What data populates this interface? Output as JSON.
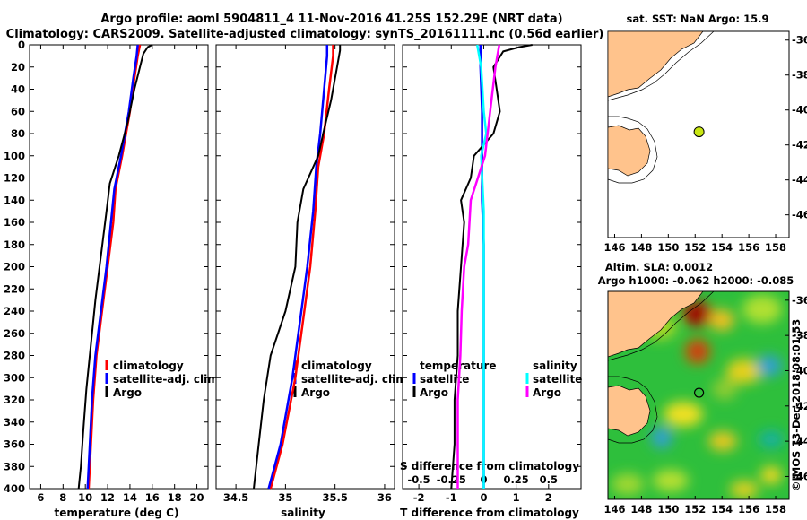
{
  "title_line1": "Argo profile: aoml 5904811_4 11-Nov-2016 41.25S 152.29E (NRT data)",
  "title_line2": "Climatology: CARS2009. Satellite-adjusted climatology: synTS_20161111.nc (0.56d earlier)",
  "watermark": "©IMOS 13-Dec-2018 08:01:53",
  "colors": {
    "climatology": "#ff0000",
    "satellite_adj": "#0000ff",
    "argo": "#000000",
    "satellite_s": "#00ffff",
    "argo_s": "#ff00ff",
    "land": "#ffc38c"
  },
  "depth_axis": {
    "ylim": [
      0,
      400
    ],
    "ticks": [
      0,
      20,
      40,
      60,
      80,
      100,
      120,
      140,
      160,
      180,
      200,
      220,
      240,
      260,
      280,
      300,
      320,
      340,
      360,
      380,
      400
    ]
  },
  "chart_data": [
    {
      "type": "line",
      "id": "temperature",
      "xlabel": "temperature (deg C)",
      "ylabel": "depth",
      "xlim": [
        5,
        21
      ],
      "ylim": [
        0,
        400
      ],
      "xticks": [
        6,
        8,
        10,
        12,
        14,
        16,
        18,
        20
      ],
      "legend": [
        "climatology",
        "satellite-adj. clim.",
        "Argo"
      ],
      "series": [
        {
          "name": "climatology",
          "depth": [
            0,
            10,
            30,
            60,
            100,
            130,
            160,
            200,
            240,
            280,
            320,
            360,
            400
          ],
          "values": [
            14.9,
            14.7,
            14.4,
            14.0,
            13.3,
            12.7,
            12.5,
            12.0,
            11.5,
            11.0,
            10.7,
            10.5,
            10.3
          ]
        },
        {
          "name": "satellite-adj. clim.",
          "depth": [
            0,
            10,
            30,
            60,
            100,
            130,
            160,
            200,
            240,
            280,
            320,
            360,
            400
          ],
          "values": [
            14.7,
            14.6,
            14.3,
            13.9,
            13.2,
            12.6,
            12.3,
            11.9,
            11.4,
            10.9,
            10.6,
            10.4,
            10.2
          ]
        },
        {
          "name": "Argo",
          "depth": [
            0,
            2,
            8,
            20,
            40,
            70,
            100,
            125,
            150,
            190,
            230,
            270,
            310,
            350,
            380,
            400
          ],
          "values": [
            16.0,
            15.6,
            15.2,
            14.9,
            14.4,
            13.8,
            13.0,
            12.2,
            11.9,
            11.4,
            10.9,
            10.5,
            10.1,
            9.8,
            9.6,
            9.4
          ]
        }
      ]
    },
    {
      "type": "line",
      "id": "salinity",
      "xlabel": "salinity",
      "ylabel": "depth",
      "xlim": [
        34.3,
        36.1
      ],
      "ylim": [
        0,
        400
      ],
      "xticks": [
        34.5,
        35,
        35.5,
        36
      ],
      "legend": [
        "climatology",
        "satellite-adj. clim.",
        "Argo"
      ],
      "series": [
        {
          "name": "climatology",
          "depth": [
            0,
            10,
            40,
            80,
            110,
            150,
            200,
            240,
            300,
            360,
            400
          ],
          "values": [
            35.48,
            35.48,
            35.44,
            35.39,
            35.33,
            35.3,
            35.25,
            35.19,
            35.1,
            34.97,
            34.85
          ]
        },
        {
          "name": "satellite-adj. clim.",
          "depth": [
            0,
            10,
            40,
            80,
            110,
            150,
            200,
            240,
            300,
            360,
            400
          ],
          "values": [
            35.42,
            35.42,
            35.39,
            35.35,
            35.31,
            35.28,
            35.22,
            35.16,
            35.07,
            34.95,
            34.83
          ]
        },
        {
          "name": "Argo",
          "depth": [
            0,
            5,
            20,
            50,
            80,
            100,
            130,
            160,
            200,
            240,
            280,
            320,
            360,
            400
          ],
          "values": [
            35.55,
            35.55,
            35.52,
            35.46,
            35.38,
            35.33,
            35.18,
            35.12,
            35.1,
            35.0,
            34.85,
            34.78,
            34.73,
            34.68
          ]
        }
      ]
    },
    {
      "type": "line",
      "id": "difference",
      "xlabel": "T difference from climatology",
      "x2label": "S difference from climatology",
      "ylabel": "depth",
      "xlim": [
        -2.5,
        3
      ],
      "ylim": [
        0,
        400
      ],
      "xticks": [
        -2,
        -1,
        0,
        1,
        2
      ],
      "x2ticks": [
        "-0.5",
        "-0.25",
        "0",
        "0.25",
        "0.5"
      ],
      "legend_groups": [
        {
          "title": "temperature",
          "items": [
            "satellite",
            "Argo"
          ]
        },
        {
          "title": "salinity",
          "items": [
            "satellite",
            "Argo"
          ]
        }
      ],
      "series": [
        {
          "name": "temperature satellite",
          "depth": [
            0,
            20,
            60,
            100,
            140,
            180,
            220,
            260,
            300,
            340,
            380,
            400
          ],
          "values": [
            -0.1,
            -0.1,
            -0.05,
            -0.05,
            -0.05,
            0,
            0,
            0,
            0,
            0,
            0,
            0
          ]
        },
        {
          "name": "temperature Argo",
          "depth": [
            0,
            2,
            6,
            20,
            40,
            60,
            80,
            100,
            120,
            140,
            160,
            200,
            240,
            280,
            320,
            360,
            400
          ],
          "values": [
            1.5,
            1.1,
            0.6,
            0.3,
            0.4,
            0.5,
            0.3,
            -0.3,
            -0.4,
            -0.7,
            -0.6,
            -0.7,
            -0.8,
            -0.8,
            -0.9,
            -0.9,
            -1.0
          ]
        },
        {
          "name": "salinity satellite",
          "depth": [
            0,
            20,
            60,
            80,
            100,
            150,
            200,
            250,
            300,
            350,
            400
          ],
          "values": [
            -0.05,
            -0.02,
            0,
            0.02,
            -0.02,
            0,
            0,
            0,
            0,
            0,
            0
          ]
        },
        {
          "name": "salinity Argo",
          "depth": [
            0,
            20,
            50,
            80,
            100,
            140,
            180,
            200,
            240,
            280,
            320,
            360,
            400
          ],
          "values": [
            0.12,
            0.09,
            0.06,
            0.03,
            0.01,
            -0.1,
            -0.12,
            -0.15,
            -0.17,
            -0.18,
            -0.2,
            -0.2,
            -0.2
          ]
        }
      ]
    },
    {
      "type": "map",
      "id": "sst_map",
      "title": "sat. SST: NaN Argo: 15.9",
      "float_lon": 152.29,
      "float_lat": -41.25,
      "xlim": [
        145.5,
        159
      ],
      "ylim": [
        -47.3,
        -35.5
      ],
      "xticks": [
        146,
        148,
        150,
        152,
        154,
        156,
        158
      ],
      "yticks": [
        -36,
        -38,
        -40,
        -42,
        -44,
        -46
      ]
    },
    {
      "type": "heatmap",
      "id": "sla_map",
      "title_line1": "Altim. SLA: 0.0012",
      "title_line2": "Argo h1000: -0.062 h2000: -0.085",
      "float_lon": 152.29,
      "float_lat": -41.25,
      "xlim": [
        145.5,
        159
      ],
      "ylim": [
        -47.3,
        -35.5
      ],
      "xticks": [
        146,
        148,
        150,
        152,
        154,
        156,
        158
      ],
      "yticks": [
        -36,
        -38,
        -40,
        -42,
        -44,
        -46
      ]
    }
  ]
}
